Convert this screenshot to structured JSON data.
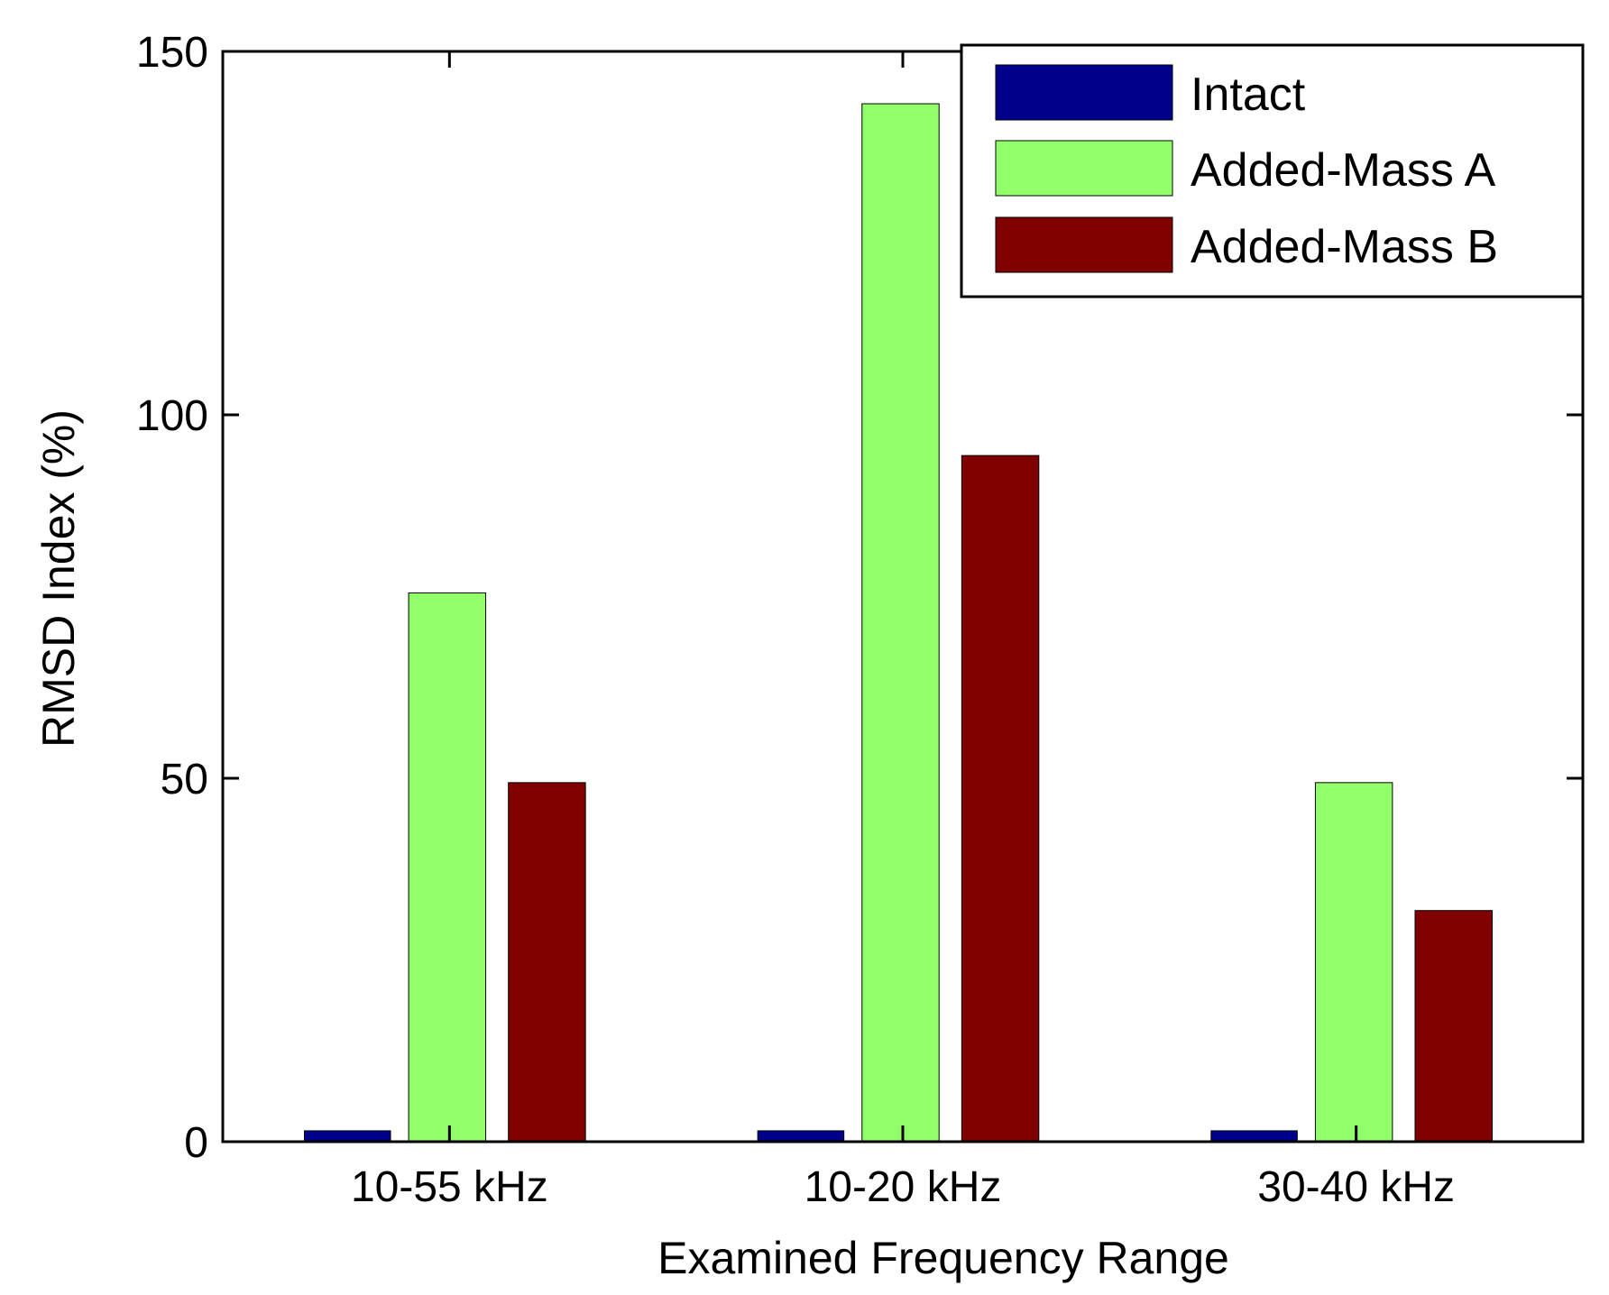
{
  "chart_data": {
    "type": "bar",
    "title": "",
    "xlabel": "Examined Frequency Range",
    "ylabel": "RMSD Index (%)",
    "categories": [
      "10-55 kHz",
      "10-20 kHz",
      "30-40 kHz"
    ],
    "ylim": [
      0,
      150
    ],
    "yticks": [
      "0",
      "50",
      "100",
      "150"
    ],
    "grid": false,
    "legend_position": "top-right",
    "series": [
      {
        "name": "Intact",
        "color": "#00008B",
        "values": [
          1.5,
          1.5,
          1.5
        ]
      },
      {
        "name": "Added-Mass A",
        "color": "#90FF6A",
        "values": [
          75.5,
          142.8,
          49.4
        ]
      },
      {
        "name": "Added-Mass B",
        "color": "#800000",
        "values": [
          49.4,
          94.4,
          31.8
        ]
      }
    ]
  }
}
